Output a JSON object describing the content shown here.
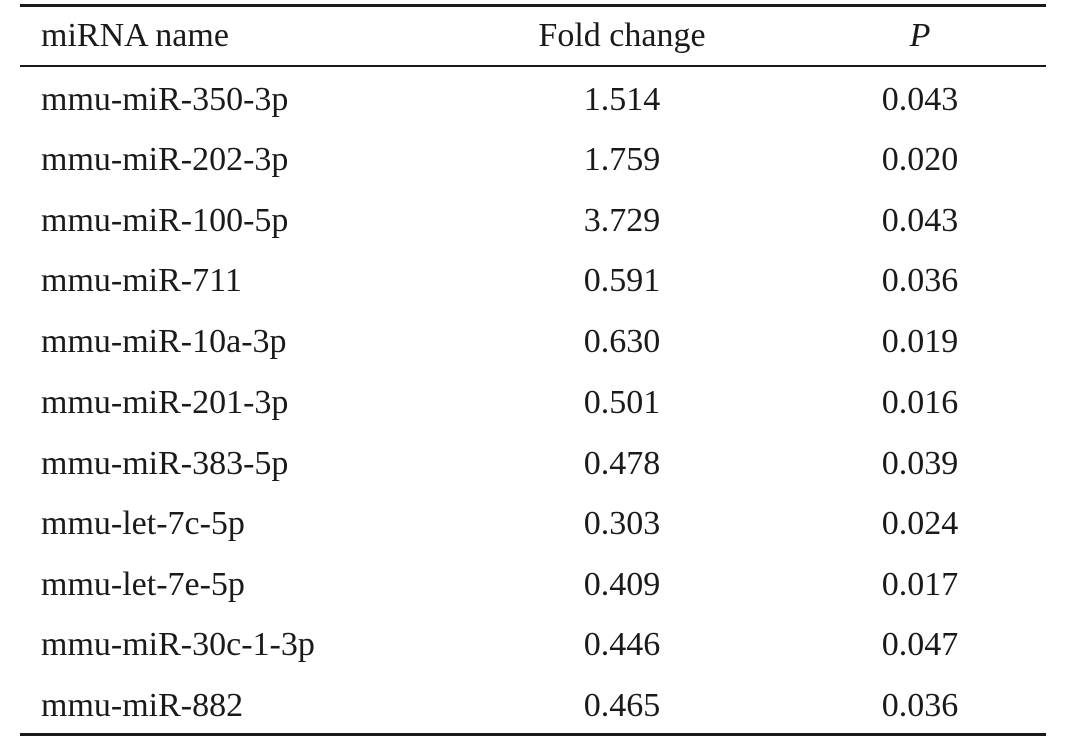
{
  "table": {
    "headers": {
      "name": "miRNA name",
      "fold": "Fold change",
      "p": "P"
    },
    "rows": [
      {
        "name": "mmu-miR-350-3p",
        "fold": "1.514",
        "p": "0.043"
      },
      {
        "name": "mmu-miR-202-3p",
        "fold": "1.759",
        "p": "0.020"
      },
      {
        "name": "mmu-miR-100-5p",
        "fold": "3.729",
        "p": "0.043"
      },
      {
        "name": "mmu-miR-711",
        "fold": "0.591",
        "p": "0.036"
      },
      {
        "name": "mmu-miR-10a-3p",
        "fold": "0.630",
        "p": "0.019"
      },
      {
        "name": "mmu-miR-201-3p",
        "fold": "0.501",
        "p": "0.016"
      },
      {
        "name": "mmu-miR-383-5p",
        "fold": "0.478",
        "p": "0.039"
      },
      {
        "name": "mmu-let-7c-5p",
        "fold": "0.303",
        "p": "0.024"
      },
      {
        "name": "mmu-let-7e-5p",
        "fold": "0.409",
        "p": "0.017"
      },
      {
        "name": "mmu-miR-30c-1-3p",
        "fold": "0.446",
        "p": "0.047"
      },
      {
        "name": "mmu-miR-882",
        "fold": "0.465",
        "p": "0.036"
      }
    ]
  }
}
